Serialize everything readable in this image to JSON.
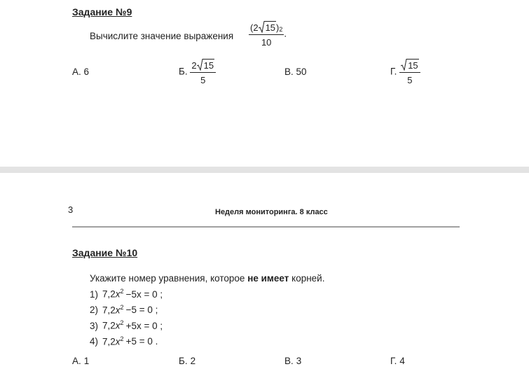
{
  "task9": {
    "title": "Задание №9",
    "prompt": "Вычислите значение выражения",
    "expression": {
      "open": "(2",
      "radicand": "15",
      "close": ")",
      "power": "2",
      "denominator": "10",
      "end": "."
    },
    "options": [
      {
        "letter": "А.",
        "text": "6"
      },
      {
        "letter": "Б.",
        "coef": "2",
        "radicand": "15",
        "denominator": "5"
      },
      {
        "letter": "В.",
        "text": "50"
      },
      {
        "letter": "Г.",
        "radicand": "15",
        "denominator": "5"
      }
    ]
  },
  "page": {
    "number": "3",
    "header": "Неделя мониторинга. 8 класс"
  },
  "task10": {
    "title": "Задание №10",
    "prompt": {
      "before": "Укажите номер уравнения, которое",
      "bold": "не имеет",
      "after": "корней."
    },
    "equations": [
      {
        "number": "1)",
        "coef": "7,2",
        "variable": "x",
        "power": "2",
        "rest": "−5x = 0 ;"
      },
      {
        "number": "2)",
        "coef": "7,2",
        "variable": "x",
        "power": "2",
        "rest": "−5 = 0 ;"
      },
      {
        "number": "3)",
        "coef": "7,2",
        "variable": "x",
        "power": "2",
        "rest": "+5x = 0 ;"
      },
      {
        "number": "4)",
        "coef": "7,2",
        "variable": "x",
        "power": "2",
        "rest": "+5 = 0 ."
      }
    ],
    "options": [
      {
        "letter": "А.",
        "text": "1"
      },
      {
        "letter": "Б.",
        "text": "2"
      },
      {
        "letter": "В.",
        "text": "3"
      },
      {
        "letter": "Г.",
        "text": "4"
      }
    ]
  }
}
